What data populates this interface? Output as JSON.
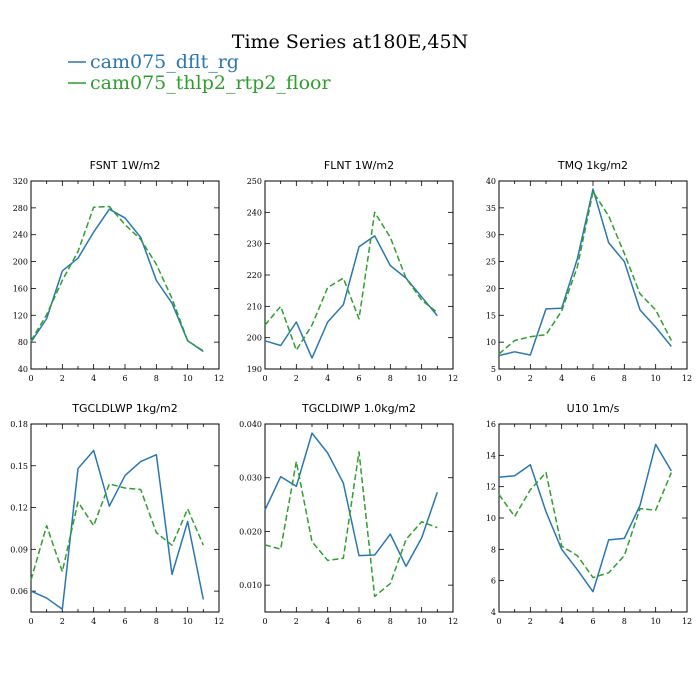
{
  "title": "Time Series at180E,45N",
  "colors": {
    "dflt": "#2a77b0",
    "thlp2": "#2f9e2f"
  },
  "legend": [
    {
      "label": "cam075_dflt_rg",
      "color": "#2a77b0",
      "dash": ""
    },
    {
      "label": "cam075_thlp2_rtp2_floor",
      "color": "#2f9e2f",
      "dash": "6,3"
    }
  ],
  "chart_data": [
    {
      "type": "line",
      "title": "FSNT   1W/m2",
      "x": [
        0,
        1,
        2,
        3,
        4,
        5,
        6,
        7,
        8,
        9,
        10,
        11
      ],
      "xlim": [
        0,
        12
      ],
      "xticks": [
        0,
        2,
        4,
        6,
        8,
        10,
        12
      ],
      "ylim": [
        40,
        320
      ],
      "yticks": [
        40,
        80,
        120,
        160,
        200,
        240,
        280,
        320
      ],
      "series": [
        {
          "name": "cam075_dflt_rg",
          "values": [
            80,
            115,
            186,
            205,
            244,
            278,
            265,
            236,
            172,
            138,
            82,
            66
          ]
        },
        {
          "name": "cam075_thlp2_rtp2_floor",
          "values": [
            82,
            121,
            172,
            215,
            281,
            282,
            255,
            233,
            196,
            145,
            82,
            67
          ]
        }
      ]
    },
    {
      "type": "line",
      "title": "FLNT   1W/m2",
      "x": [
        0,
        1,
        2,
        3,
        4,
        5,
        6,
        7,
        8,
        9,
        10,
        11
      ],
      "xlim": [
        0,
        12
      ],
      "xticks": [
        0,
        2,
        4,
        6,
        8,
        10,
        12
      ],
      "ylim": [
        190,
        250
      ],
      "yticks": [
        190,
        200,
        210,
        220,
        230,
        240,
        250
      ],
      "series": [
        {
          "name": "cam075_dflt_rg",
          "values": [
            199,
            197.5,
            205,
            193.5,
            205,
            210.5,
            229,
            232.5,
            223,
            219,
            213,
            207
          ]
        },
        {
          "name": "cam075_thlp2_rtp2_floor",
          "values": [
            204,
            210,
            196,
            204,
            216,
            219,
            206,
            240,
            232,
            219,
            212,
            208
          ]
        }
      ]
    },
    {
      "type": "line",
      "title": "TMQ   1kg/m2",
      "x": [
        0,
        1,
        2,
        3,
        4,
        5,
        6,
        7,
        8,
        9,
        10,
        11
      ],
      "xlim": [
        0,
        12
      ],
      "xticks": [
        0,
        2,
        4,
        6,
        8,
        10,
        12
      ],
      "ylim": [
        5,
        40
      ],
      "yticks": [
        5,
        10,
        15,
        20,
        25,
        30,
        35,
        40
      ],
      "series": [
        {
          "name": "cam075_dflt_rg",
          "values": [
            7.5,
            8.2,
            7.6,
            16.2,
            16.3,
            25.5,
            38.5,
            28.5,
            25,
            16,
            12.8,
            9.2
          ]
        },
        {
          "name": "cam075_thlp2_rtp2_floor",
          "values": [
            7.8,
            10.3,
            11,
            11.4,
            15.8,
            24,
            38,
            33.5,
            26.5,
            19,
            16,
            10.3
          ]
        }
      ]
    },
    {
      "type": "line",
      "title": "TGCLDLWP   1kg/m2",
      "x": [
        0,
        1,
        2,
        3,
        4,
        5,
        6,
        7,
        8,
        9,
        10,
        11
      ],
      "xlim": [
        0,
        12
      ],
      "xticks": [
        0,
        2,
        4,
        6,
        8,
        10,
        12
      ],
      "ylim": [
        0.045,
        0.18
      ],
      "yticks": [
        0.06,
        0.09,
        0.12,
        0.15,
        0.18
      ],
      "ytick_labels": [
        "0.06",
        "0.09",
        "0.12",
        "0.15",
        "0.18"
      ],
      "series": [
        {
          "name": "cam075_dflt_rg",
          "values": [
            0.06,
            0.055,
            0.047,
            0.148,
            0.161,
            0.121,
            0.143,
            0.153,
            0.158,
            0.072,
            0.11,
            0.054
          ]
        },
        {
          "name": "cam075_thlp2_rtp2_floor",
          "values": [
            0.068,
            0.107,
            0.074,
            0.124,
            0.107,
            0.137,
            0.134,
            0.133,
            0.102,
            0.093,
            0.119,
            0.093
          ]
        }
      ]
    },
    {
      "type": "line",
      "title": "TGCLDIWP   1.0kg/m2",
      "x": [
        0,
        1,
        2,
        3,
        4,
        5,
        6,
        7,
        8,
        9,
        10,
        11
      ],
      "xlim": [
        0,
        12
      ],
      "xticks": [
        0,
        2,
        4,
        6,
        8,
        10,
        12
      ],
      "ylim": [
        0.005,
        0.04
      ],
      "yticks": [
        0.01,
        0.02,
        0.03,
        0.04
      ],
      "ytick_labels": [
        "0.010",
        "0.020",
        "0.030",
        "0.040"
      ],
      "series": [
        {
          "name": "cam075_dflt_rg",
          "values": [
            0.024,
            0.0302,
            0.0284,
            0.0383,
            0.0346,
            0.029,
            0.0155,
            0.0156,
            0.0195,
            0.0135,
            0.0188,
            0.0273
          ]
        },
        {
          "name": "cam075_thlp2_rtp2_floor",
          "values": [
            0.0175,
            0.0167,
            0.033,
            0.0181,
            0.0146,
            0.015,
            0.0348,
            0.0079,
            0.0103,
            0.0185,
            0.0218,
            0.0207
          ]
        }
      ]
    },
    {
      "type": "line",
      "title": "U10   1m/s",
      "x": [
        0,
        1,
        2,
        3,
        4,
        5,
        6,
        7,
        8,
        9,
        10,
        11
      ],
      "xlim": [
        0,
        12
      ],
      "xticks": [
        0,
        2,
        4,
        6,
        8,
        10,
        12
      ],
      "ylim": [
        4,
        16
      ],
      "yticks": [
        4,
        6,
        8,
        10,
        12,
        14,
        16
      ],
      "series": [
        {
          "name": "cam075_dflt_rg",
          "values": [
            12.6,
            12.7,
            13.4,
            10.4,
            8,
            6.7,
            5.3,
            8.6,
            8.7,
            10.8,
            14.7,
            13
          ]
        },
        {
          "name": "cam075_thlp2_rtp2_floor",
          "values": [
            11.5,
            10.1,
            11.8,
            12.9,
            8.2,
            7.6,
            6.2,
            6.5,
            7.6,
            10.6,
            10.5,
            12.9
          ]
        }
      ]
    }
  ]
}
